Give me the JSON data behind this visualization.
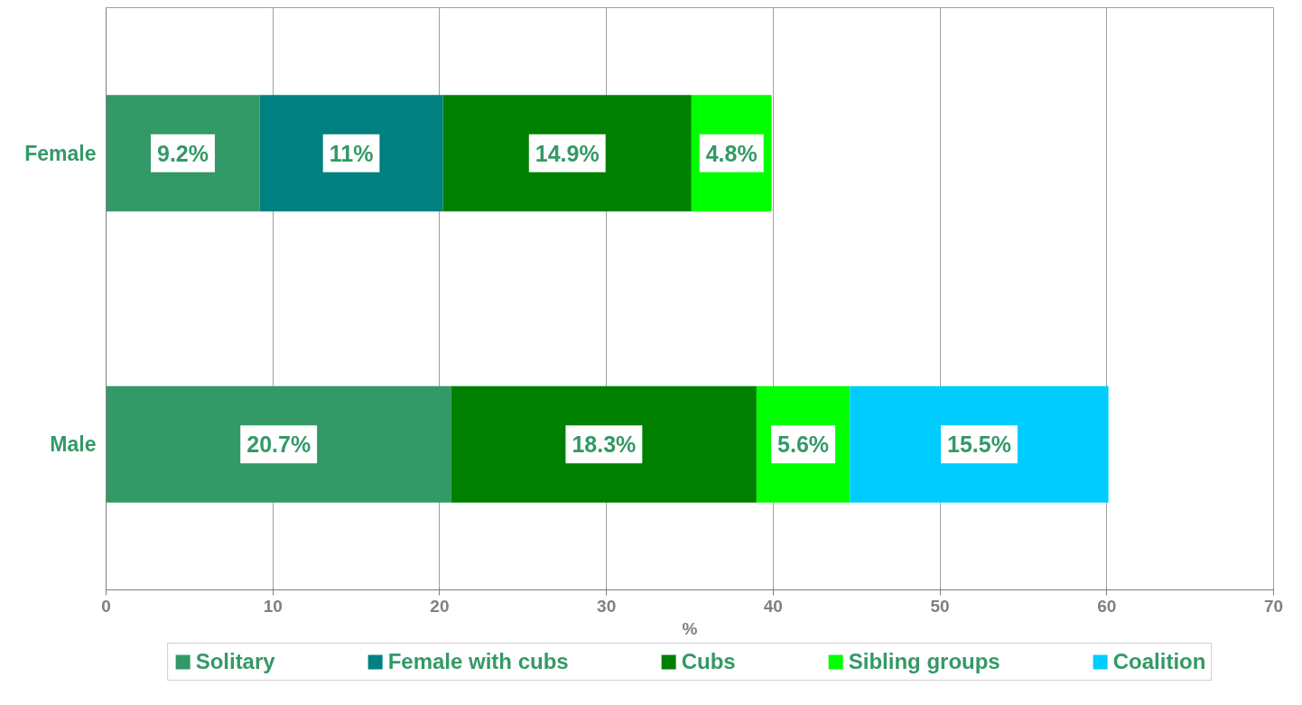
{
  "chart_data": {
    "type": "bar",
    "orientation": "horizontal",
    "stacked": true,
    "categories": [
      "Female",
      "Male"
    ],
    "xlabel": "%",
    "xlim": [
      0,
      70
    ],
    "xticks": [
      0,
      10,
      20,
      30,
      40,
      50,
      60,
      70
    ],
    "grid": "x",
    "legend": "bottom",
    "series": [
      {
        "name": "Solitary",
        "color": "#339966",
        "values": [
          9.2,
          20.7
        ],
        "value_labels": [
          "9.2%",
          "20.7%"
        ]
      },
      {
        "name": "Female with cubs",
        "color": "#008080",
        "values": [
          11,
          null
        ],
        "value_labels": [
          "11%",
          null
        ]
      },
      {
        "name": "Cubs",
        "color": "#008000",
        "values": [
          14.9,
          18.3
        ],
        "value_labels": [
          "14.9%",
          "18.3%"
        ]
      },
      {
        "name": "Sibling groups",
        "color": "#00ff00",
        "values": [
          4.8,
          5.6
        ],
        "value_labels": [
          "4.8%",
          "5.6%"
        ]
      },
      {
        "name": "Coalition",
        "color": "#00ccff",
        "values": [
          null,
          15.5
        ],
        "value_labels": [
          null,
          "15.5%"
        ]
      }
    ]
  }
}
